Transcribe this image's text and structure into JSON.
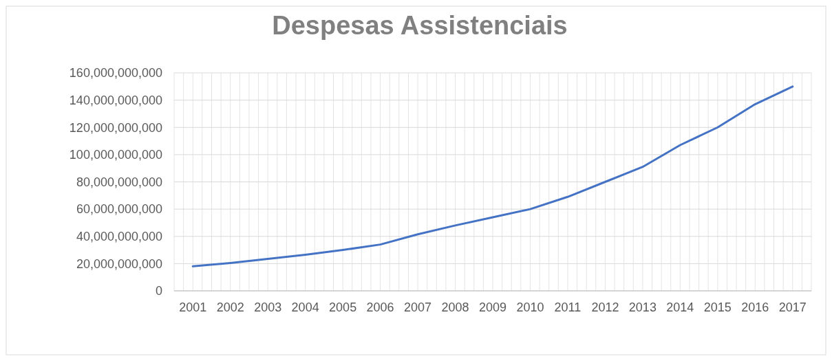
{
  "chart_data": {
    "type": "line",
    "title": "Despesas Assistenciais",
    "categories": [
      "2001",
      "2002",
      "2003",
      "2004",
      "2005",
      "2006",
      "2007",
      "2008",
      "2009",
      "2010",
      "2011",
      "2012",
      "2013",
      "2014",
      "2015",
      "2016",
      "2017"
    ],
    "series": [
      {
        "color": "#4472c4",
        "values": [
          18000000000,
          20500000000,
          23500000000,
          26500000000,
          30000000000,
          34000000000,
          41500000000,
          48000000000,
          54000000000,
          60000000000,
          69000000000,
          80000000000,
          91000000000,
          107000000000,
          120000000000,
          137000000000,
          150000000000
        ]
      }
    ],
    "ylim": [
      0,
      160000000000
    ],
    "yticks": [
      {
        "value": 0,
        "label": "0"
      },
      {
        "value": 20000000000,
        "label": "20,000,000,000"
      },
      {
        "value": 40000000000,
        "label": "40,000,000,000"
      },
      {
        "value": 60000000000,
        "label": "60,000,000,000"
      },
      {
        "value": 80000000000,
        "label": "80,000,000,000"
      },
      {
        "value": 100000000000,
        "label": "100,000,000,000"
      },
      {
        "value": 120000000000,
        "label": "120,000,000,000"
      },
      {
        "value": 140000000000,
        "label": "140,000,000,000"
      },
      {
        "value": 160000000000,
        "label": "160,000,000,000"
      }
    ],
    "grid": true,
    "marker": "none",
    "line_style": "solid"
  }
}
